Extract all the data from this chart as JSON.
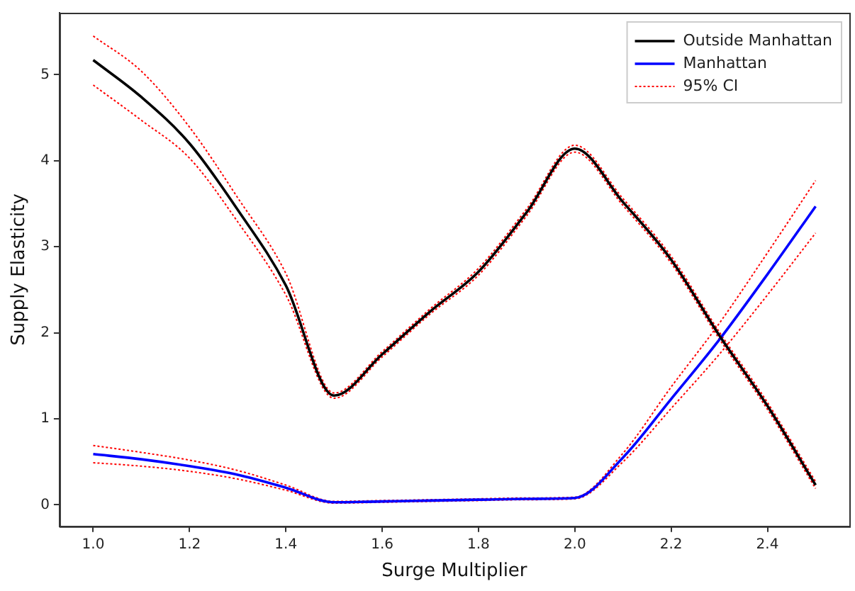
{
  "chart_data": {
    "type": "line",
    "xlabel": "Surge Multiplier",
    "ylabel": "Supply Elasticity",
    "x": [
      1.0,
      1.1,
      1.2,
      1.3,
      1.4,
      1.5,
      1.6,
      1.7,
      1.8,
      1.9,
      2.0,
      2.1,
      2.2,
      2.3,
      2.4,
      2.5
    ],
    "series": [
      {
        "name": "Outside Manhattan",
        "color": "#000000",
        "values": [
          5.17,
          4.74,
          4.2,
          3.43,
          2.55,
          1.27,
          1.75,
          2.25,
          2.71,
          3.4,
          4.14,
          3.52,
          2.85,
          1.97,
          1.15,
          0.23
        ]
      },
      {
        "name": "Manhattan",
        "color": "#0000ff",
        "values": [
          0.59,
          0.53,
          0.45,
          0.35,
          0.2,
          0.03,
          0.04,
          0.05,
          0.06,
          0.07,
          0.08,
          0.55,
          1.23,
          1.92,
          2.68,
          3.47
        ]
      },
      {
        "name": "95% CI",
        "color": "#ff0000",
        "line_style": "dotted",
        "values": [
          5.45,
          5.04,
          4.39,
          3.57,
          2.69,
          1.3,
          1.78,
          2.28,
          2.75,
          3.44,
          4.18,
          3.56,
          2.89,
          2.01,
          1.19,
          0.27
        ]
      },
      {
        "color": "#ff0000",
        "line_style": "dotted",
        "values": [
          4.88,
          4.47,
          4.03,
          3.29,
          2.44,
          1.24,
          1.72,
          2.22,
          2.67,
          3.36,
          4.1,
          3.48,
          2.81,
          1.93,
          1.11,
          0.19
        ]
      },
      {
        "color": "#ff0000",
        "line_style": "dotted",
        "values": [
          0.69,
          0.61,
          0.52,
          0.4,
          0.23,
          0.04,
          0.05,
          0.06,
          0.07,
          0.08,
          0.09,
          0.6,
          1.37,
          2.11,
          2.93,
          3.77
        ]
      },
      {
        "color": "#ff0000",
        "line_style": "dotted",
        "values": [
          0.49,
          0.45,
          0.39,
          0.3,
          0.17,
          0.02,
          0.03,
          0.04,
          0.05,
          0.06,
          0.07,
          0.5,
          1.12,
          1.75,
          2.44,
          3.16
        ]
      }
    ],
    "xlim": [
      0.93,
      2.57
    ],
    "xticks": [
      {
        "value": 1.0,
        "label": "1.0"
      },
      1.2,
      1.4,
      1.6,
      1.8,
      {
        "value": 2.0,
        "label": "2.0"
      },
      2.2,
      2.4
    ],
    "ylim": [
      -0.25,
      5.72
    ],
    "yticks": [
      0,
      1,
      2,
      3,
      4,
      5
    ],
    "legend": "top right",
    "grid": false,
    "marker": "none",
    "line_style": "solid"
  }
}
